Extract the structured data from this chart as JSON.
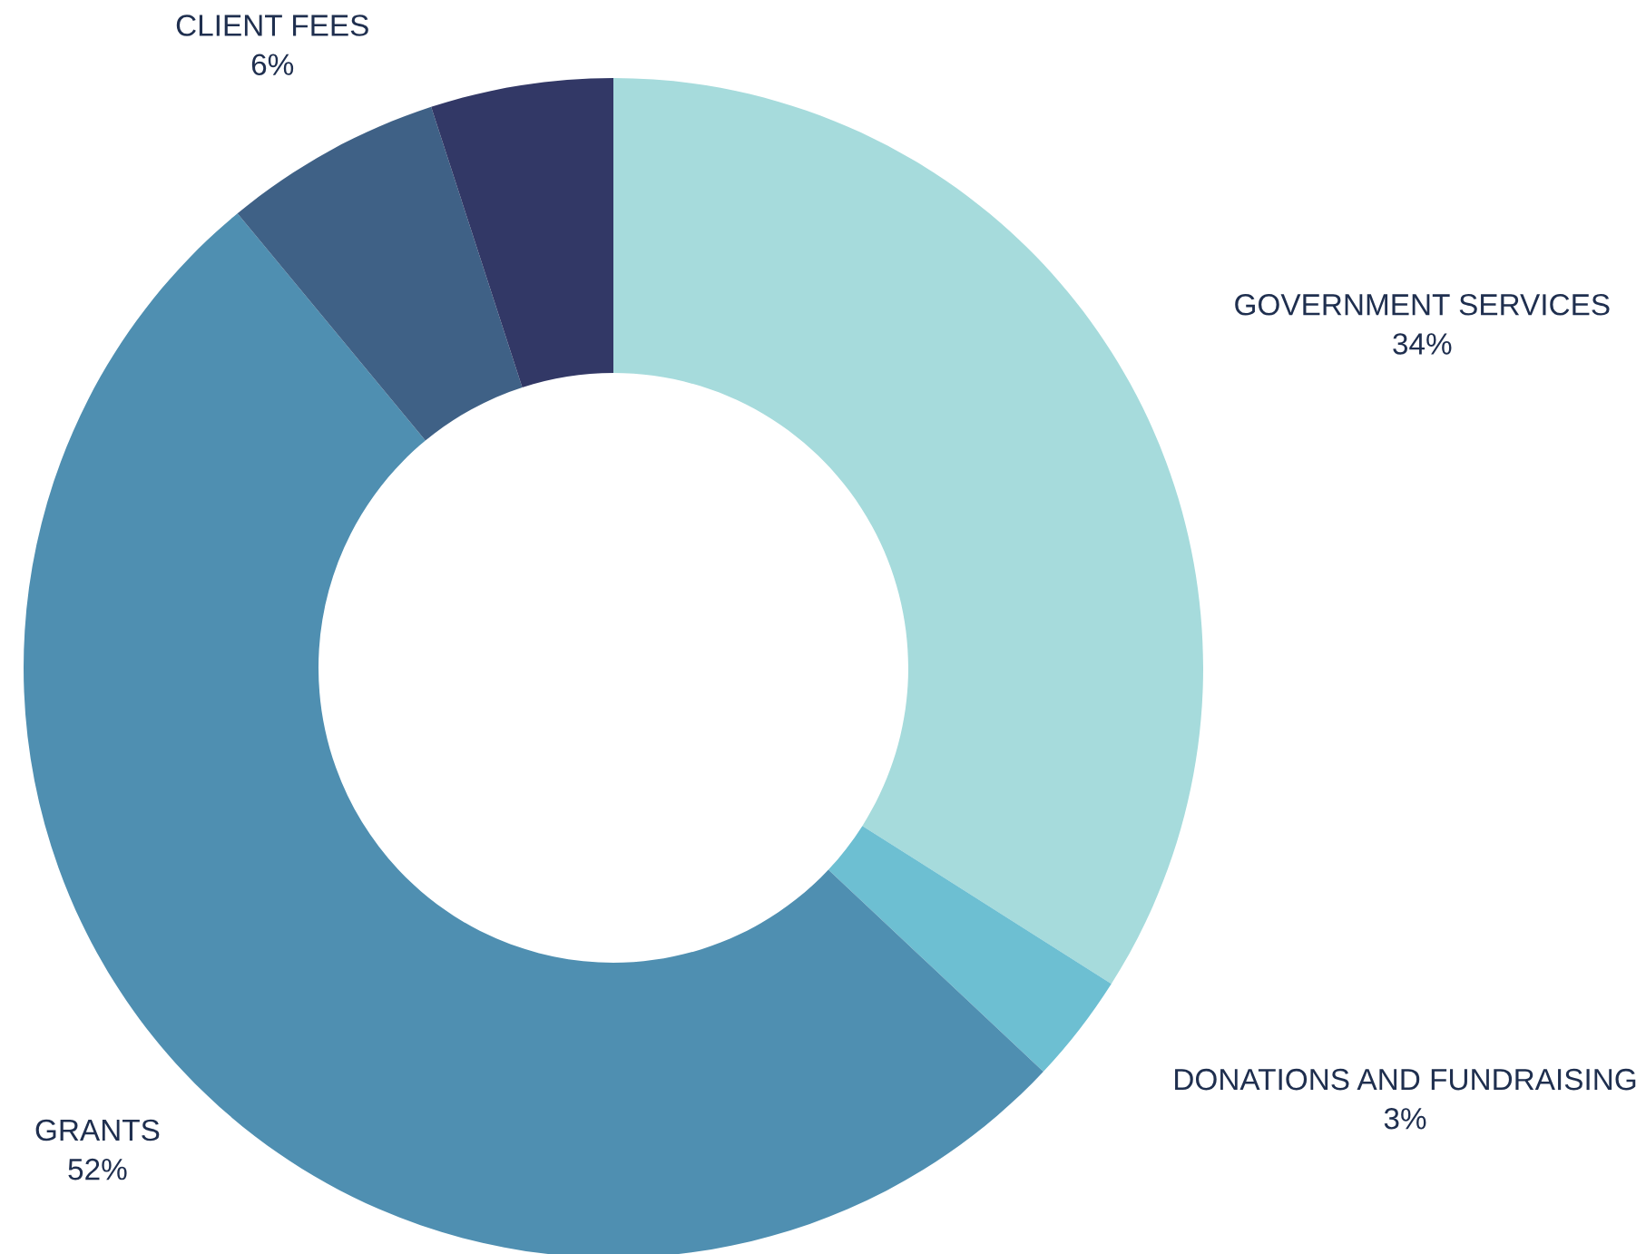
{
  "chart_data": {
    "type": "donut",
    "categories": [
      "GOVERNMENT SERVICES",
      "DONATIONS AND FUNDRAISING",
      "GRANTS",
      "CLIENT FEES",
      null
    ],
    "values": [
      34,
      3,
      52,
      6,
      5
    ],
    "value_labels": [
      "34%",
      "3%",
      "52%",
      "6%",
      null
    ],
    "colors": [
      "#a6dbdc",
      "#6dbfd2",
      "#4f8fb1",
      "#3f6186",
      "#323866"
    ],
    "legend": false
  }
}
